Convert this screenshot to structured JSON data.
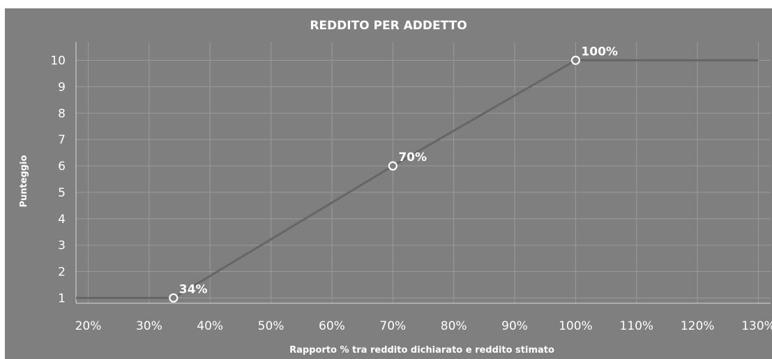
{
  "chart_data": {
    "type": "line",
    "title": "REDDITO PER ADDETTO",
    "xlabel": "Rapporto % tra reddito dichiarato e reddito stimato",
    "ylabel": "Punteggio",
    "xlim": [
      18,
      132
    ],
    "ylim": [
      0.8,
      10.7
    ],
    "x_ticks": [
      20,
      30,
      40,
      50,
      60,
      70,
      80,
      90,
      100,
      110,
      120,
      130
    ],
    "x_tick_labels": [
      "20%",
      "30%",
      "40%",
      "50%",
      "60%",
      "70%",
      "80%",
      "90%",
      "100%",
      "110%",
      "120%",
      "130%"
    ],
    "y_ticks": [
      1,
      2,
      3,
      4,
      5,
      6,
      7,
      8,
      9,
      10
    ],
    "y_tick_labels": [
      "1",
      "2",
      "3",
      "4",
      "5",
      "6",
      "7",
      "8",
      "9",
      "10"
    ],
    "grid": true,
    "series": [
      {
        "x": [
          18,
          34,
          70,
          100,
          130
        ],
        "y": [
          1,
          1,
          6,
          10,
          10
        ]
      }
    ],
    "markers": [
      {
        "x": 34,
        "y": 1,
        "label": "34%"
      },
      {
        "x": 70,
        "y": 6,
        "label": "70%"
      },
      {
        "x": 100,
        "y": 10,
        "label": "100%"
      }
    ],
    "colors": {
      "background": "#7f7f7f",
      "line": "#666666",
      "grid": "#9a9a9a",
      "text": "#ffffff"
    }
  }
}
